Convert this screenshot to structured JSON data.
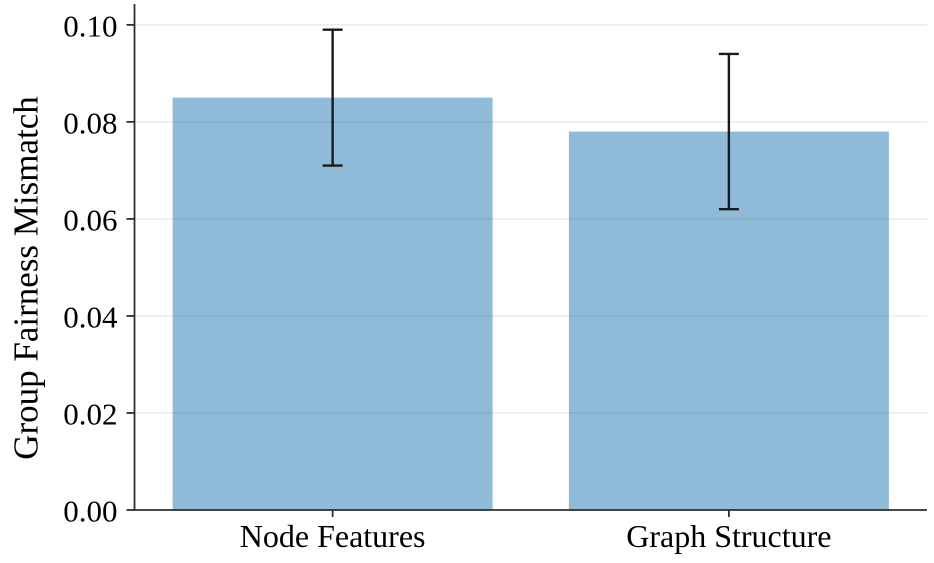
{
  "chart_data": {
    "type": "bar",
    "title": "",
    "xlabel": "",
    "ylabel": "Group Fairness Mismatch",
    "categories": [
      "Node Features",
      "Graph Structure"
    ],
    "values": [
      0.085,
      0.078
    ],
    "errors": [
      0.014,
      0.016
    ],
    "ylim": [
      0,
      0.1043
    ],
    "yticks": [
      0,
      0.02,
      0.04,
      0.06,
      0.08,
      0.1
    ],
    "ytick_labels": [
      "0.00",
      "0.02",
      "0.04",
      "0.06",
      "0.08",
      "0.10"
    ],
    "grid": true,
    "legend_position": "none",
    "styles": {
      "bar_color": "#1f77b4",
      "bar_alpha": 0.5,
      "bar_color_on_white": "#8fbbd9",
      "error_color": "#1a1a1a",
      "grid_color": "#e9e9e9",
      "spine_color": "#2e2e2e",
      "text_color": "#000000",
      "background": "#ffffff"
    }
  }
}
